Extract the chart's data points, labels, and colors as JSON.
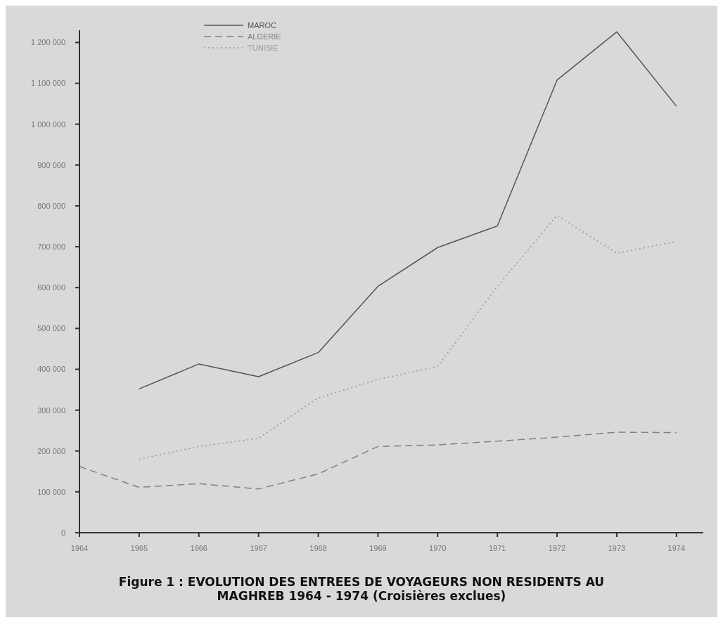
{
  "chart_data": {
    "type": "line",
    "title": "Figure 1 : EVOLUTION DES ENTREES DE VOYAGEURS NON RESIDENTS AU MAGHREB 1964 - 1974 (Croisières exclues)",
    "x": [
      1964,
      1965,
      1966,
      1967,
      1968,
      1969,
      1970,
      1971,
      1972,
      1973,
      1974
    ],
    "series": [
      {
        "name": "MAROC",
        "color": "#555555",
        "line_style": "solid",
        "values": [
          null,
          352000,
          413000,
          382000,
          441000,
          603000,
          698000,
          751000,
          1108000,
          1226000,
          1044000
        ]
      },
      {
        "name": "ALGERIE",
        "color": "#808080",
        "line_style": "dashed",
        "values": [
          162000,
          111000,
          120000,
          107000,
          144000,
          211000,
          215000,
          224000,
          234000,
          246000,
          245000
        ]
      },
      {
        "name": "TUNISIE",
        "color": "#999999",
        "line_style": "dotted",
        "values": [
          null,
          180000,
          211000,
          231000,
          330000,
          375000,
          407000,
          603000,
          777000,
          684000,
          713000
        ]
      }
    ],
    "xlim": [
      1964,
      1974.45
    ],
    "xticks": [
      1964,
      1965,
      1966,
      1967,
      1968,
      1969,
      1970,
      1971,
      1972,
      1973,
      1974
    ],
    "ylim": [
      0,
      1230000
    ],
    "yticks": [
      0,
      {
        "value": 100000,
        "label": "100 000"
      },
      {
        "value": 200000,
        "label": "200 000"
      },
      {
        "value": 300000,
        "label": "300 000"
      },
      {
        "value": 400000,
        "label": "400 000"
      },
      {
        "value": 500000,
        "label": "500 000"
      },
      {
        "value": 600000,
        "label": "600 000"
      },
      {
        "value": 700000,
        "label": "700 000"
      },
      {
        "value": 800000,
        "label": "800 000"
      },
      {
        "value": 900000,
        "label": "900 000"
      },
      {
        "value": 1000000,
        "label": "1 000 000"
      },
      {
        "value": 1100000,
        "label": "1 100 000"
      },
      {
        "value": 1200000,
        "label": "1 200 000"
      }
    ],
    "grid": false,
    "legend": "top left",
    "marker": "none"
  }
}
